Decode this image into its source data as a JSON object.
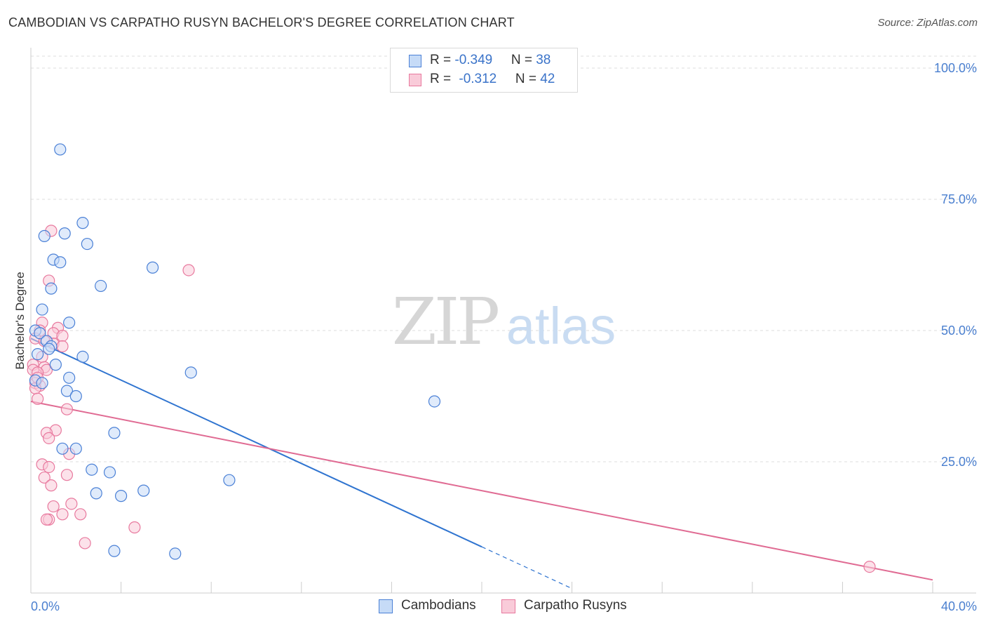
{
  "title": "CAMBODIAN VS CARPATHO RUSYN BACHELOR'S DEGREE CORRELATION CHART",
  "source": "Source: ZipAtlas.com",
  "watermark": {
    "zip": "ZIP",
    "atlas": "atlas"
  },
  "colors": {
    "blue": "#4a80d6",
    "blue_fill": "#c6dbf7",
    "blue_line": "#2f74d0",
    "pink": "#e8799e",
    "pink_fill": "#f9cbd9",
    "pink_line": "#e06b93",
    "tick_text": "#4a7fcf",
    "grid": "#dddddd"
  },
  "legend": {
    "rows": [
      {
        "r_label": "R = ",
        "r_value": "-0.349",
        "n_label": "N = ",
        "n_value": "38"
      },
      {
        "r_label": "R = ",
        "r_value": "-0.312",
        "n_label": "N = ",
        "n_value": "42"
      }
    ]
  },
  "bottom_legend": {
    "series1": "Cambodians",
    "series2": "Carpatho Rusyns"
  },
  "chart_data": {
    "type": "scatter",
    "title": "CAMBODIAN VS CARPATHO RUSYN BACHELOR'S DEGREE CORRELATION CHART",
    "xlabel": "",
    "ylabel": "Bachelor's Degree",
    "xlim": [
      0,
      40
    ],
    "ylim": [
      0,
      100
    ],
    "x_tick_labels": [
      "0.0%",
      "40.0%"
    ],
    "y_tick_labels": [
      "100.0%",
      "75.0%",
      "50.0%",
      "25.0%"
    ],
    "y_ticks": [
      100,
      75,
      50,
      25
    ],
    "grid": true,
    "series": [
      {
        "name": "Cambodians",
        "color": "#4a80d6",
        "points": [
          [
            1.3,
            84.5
          ],
          [
            2.3,
            70.5
          ],
          [
            0.6,
            68.0
          ],
          [
            1.5,
            68.5
          ],
          [
            2.5,
            66.5
          ],
          [
            1.0,
            63.5
          ],
          [
            1.3,
            63.0
          ],
          [
            5.4,
            62.0
          ],
          [
            0.9,
            58.0
          ],
          [
            3.1,
            58.5
          ],
          [
            0.5,
            54.0
          ],
          [
            1.7,
            51.5
          ],
          [
            0.2,
            50.0
          ],
          [
            0.4,
            49.5
          ],
          [
            0.7,
            48.0
          ],
          [
            0.9,
            47.0
          ],
          [
            0.8,
            46.5
          ],
          [
            0.3,
            45.5
          ],
          [
            2.3,
            45.0
          ],
          [
            1.1,
            43.5
          ],
          [
            7.1,
            42.0
          ],
          [
            1.7,
            41.0
          ],
          [
            0.2,
            40.5
          ],
          [
            1.6,
            38.5
          ],
          [
            2.0,
            37.5
          ],
          [
            17.9,
            36.5
          ],
          [
            3.7,
            30.5
          ],
          [
            1.4,
            27.5
          ],
          [
            2.0,
            27.5
          ],
          [
            2.7,
            23.5
          ],
          [
            3.5,
            23.0
          ],
          [
            8.8,
            21.5
          ],
          [
            5.0,
            19.5
          ],
          [
            2.9,
            19.0
          ],
          [
            4.0,
            18.5
          ],
          [
            3.7,
            8.0
          ],
          [
            6.4,
            7.5
          ],
          [
            0.5,
            40.0
          ]
        ]
      },
      {
        "name": "Carpatho Rusyns",
        "color": "#e8799e",
        "points": [
          [
            0.9,
            69.0
          ],
          [
            7.0,
            61.5
          ],
          [
            0.8,
            59.5
          ],
          [
            0.5,
            51.5
          ],
          [
            1.2,
            50.5
          ],
          [
            0.4,
            50.0
          ],
          [
            1.0,
            49.5
          ],
          [
            1.4,
            49.0
          ],
          [
            0.2,
            48.5
          ],
          [
            0.6,
            48.0
          ],
          [
            1.0,
            47.5
          ],
          [
            1.4,
            47.0
          ],
          [
            0.5,
            45.0
          ],
          [
            0.1,
            43.5
          ],
          [
            0.6,
            43.0
          ],
          [
            0.1,
            42.5
          ],
          [
            0.7,
            42.5
          ],
          [
            0.3,
            42.0
          ],
          [
            0.2,
            40.0
          ],
          [
            0.4,
            39.5
          ],
          [
            0.2,
            39.0
          ],
          [
            0.3,
            37.0
          ],
          [
            1.6,
            35.0
          ],
          [
            1.1,
            31.0
          ],
          [
            0.7,
            30.5
          ],
          [
            0.8,
            29.5
          ],
          [
            1.7,
            26.5
          ],
          [
            0.5,
            24.5
          ],
          [
            0.8,
            24.0
          ],
          [
            1.6,
            22.5
          ],
          [
            0.6,
            22.0
          ],
          [
            0.9,
            20.5
          ],
          [
            1.0,
            16.5
          ],
          [
            1.8,
            17.0
          ],
          [
            1.4,
            15.0
          ],
          [
            2.2,
            15.0
          ],
          [
            0.8,
            14.0
          ],
          [
            0.7,
            14.0
          ],
          [
            4.6,
            12.5
          ],
          [
            2.4,
            9.5
          ],
          [
            37.2,
            5.0
          ],
          [
            0.3,
            41.0
          ]
        ]
      }
    ],
    "trend_lines": [
      {
        "series": "Cambodians",
        "x": [
          0.0,
          20.0
        ],
        "y": [
          48.5,
          8.8
        ],
        "dashed_extension_to_x": 24.0
      },
      {
        "series": "Carpatho Rusyns",
        "x": [
          0.0,
          40.0
        ],
        "y": [
          36.5,
          2.5
        ]
      }
    ]
  }
}
